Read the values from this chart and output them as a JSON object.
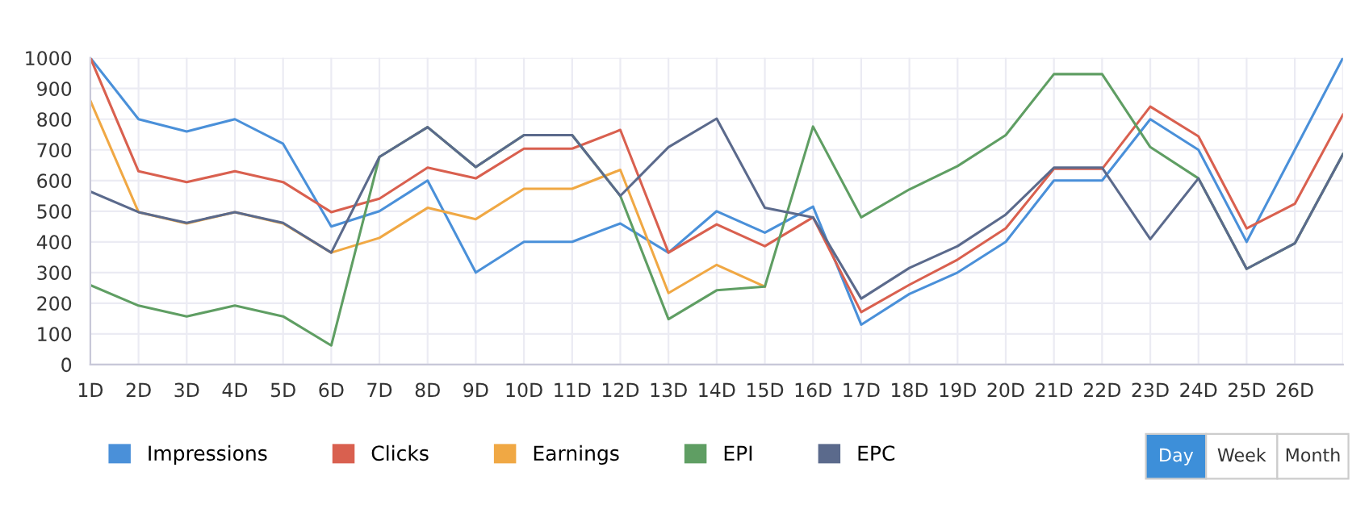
{
  "chart_data": {
    "type": "line",
    "categories": [
      "1D",
      "2D",
      "3D",
      "4D",
      "5D",
      "6D",
      "7D",
      "8D",
      "9D",
      "10D",
      "11D",
      "12D",
      "13D",
      "14D",
      "15D",
      "16D",
      "17D",
      "18D",
      "19D",
      "20D",
      "21D",
      "22D",
      "23D",
      "24D",
      "25D",
      "26D",
      null
    ],
    "series": [
      {
        "name": "Impressions",
        "color": "#4a90d9",
        "values": [
          1000,
          800,
          760,
          800,
          720,
          450,
          500,
          600,
          300,
          400,
          400,
          460,
          365,
          500,
          430,
          515,
          130,
          230,
          300,
          400,
          600,
          600,
          800,
          700,
          400,
          700,
          1000
        ]
      },
      {
        "name": "Clicks",
        "color": "#d9604f",
        "values": [
          1000,
          630,
          595,
          630,
          595,
          497,
          541,
          642,
          607,
          704,
          704,
          765,
          365,
          457,
          386,
          480,
          171,
          260,
          342,
          444,
          638,
          638,
          841,
          744,
          444,
          524,
          815
        ]
      },
      {
        "name": "Earnings",
        "color": "#f0a844",
        "values": [
          860,
          497,
          460,
          497,
          460,
          365,
          413,
          511,
          474,
          573,
          573,
          635,
          233,
          325,
          254,
          null,
          null,
          null,
          null,
          null,
          null,
          null,
          null,
          null,
          null,
          null,
          null
        ]
      },
      {
        "name": "EPI",
        "color": "#5f9e63",
        "values": [
          259,
          192,
          157,
          192,
          157,
          62,
          677,
          774,
          644,
          748,
          748,
          550,
          148,
          242,
          254,
          776,
          480,
          571,
          647,
          748,
          947,
          947,
          709,
          607,
          312,
          395,
          686
        ]
      },
      {
        "name": "EPC",
        "color": "#5b6a8c",
        "values": [
          564,
          497,
          462,
          497,
          462,
          365,
          677,
          774,
          644,
          748,
          748,
          550,
          709,
          802,
          511,
          480,
          215,
          315,
          386,
          489,
          642,
          642,
          409,
          607,
          312,
          395,
          686
        ]
      }
    ],
    "ylim": [
      0,
      1000
    ],
    "yticks": [
      0,
      100,
      200,
      300,
      400,
      500,
      600,
      700,
      800,
      900,
      1000
    ],
    "grid": true,
    "legend": "bottom left",
    "marker": "none",
    "line_style": "solid",
    "annotations": [
      "Day",
      "Week",
      "Month"
    ]
  }
}
